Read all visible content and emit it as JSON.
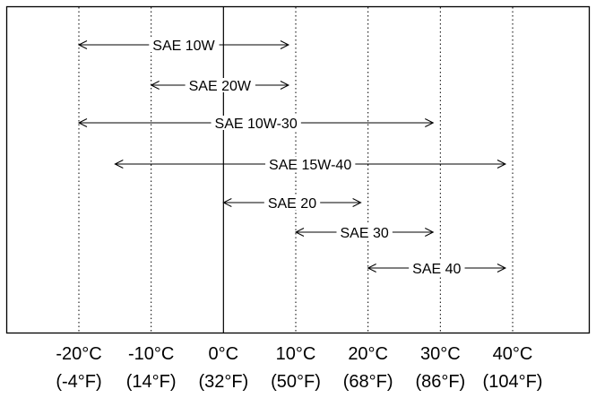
{
  "chart_data": {
    "type": "range",
    "x_unit": "°C",
    "xlim": [
      -30,
      50
    ],
    "ticks": [
      {
        "c": -20,
        "c_label": "-20°C",
        "f_label": "(-4°F)"
      },
      {
        "c": -10,
        "c_label": "-10°C",
        "f_label": "(14°F)"
      },
      {
        "c": 0,
        "c_label": "0°C",
        "f_label": "(32°F)"
      },
      {
        "c": 10,
        "c_label": "10°C",
        "f_label": "(50°F)"
      },
      {
        "c": 20,
        "c_label": "20°C",
        "f_label": "(68°F)"
      },
      {
        "c": 30,
        "c_label": "30°C",
        "f_label": "(86°F)"
      },
      {
        "c": 40,
        "c_label": "40°C",
        "f_label": "(104°F)"
      }
    ],
    "series": [
      {
        "name": "SAE 10W",
        "min": -20,
        "max": 9
      },
      {
        "name": "SAE 20W",
        "min": -10,
        "max": 9
      },
      {
        "name": "SAE 10W-30",
        "min": -20,
        "max": 29
      },
      {
        "name": "SAE 15W-40",
        "min": -15,
        "max": 39
      },
      {
        "name": "SAE 20",
        "min": 0,
        "max": 19
      },
      {
        "name": "SAE 30",
        "min": 10,
        "max": 29
      },
      {
        "name": "SAE 40",
        "min": 20,
        "max": 39
      }
    ],
    "grid": "vertical dotted at ticks",
    "label_placement": "centered on arrow"
  }
}
